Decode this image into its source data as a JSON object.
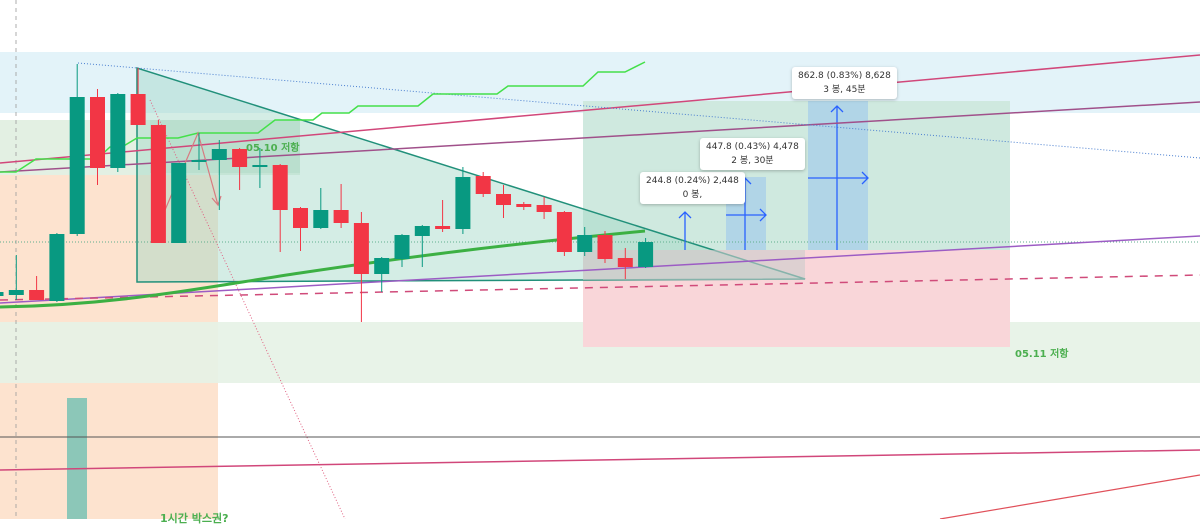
{
  "chart_data": {
    "type": "candlestick",
    "title": "",
    "xlabel": "",
    "ylabel": "",
    "grid": false,
    "colors": {
      "up": "#089981",
      "down": "#f23645"
    },
    "candles": [
      {
        "o": 223,
        "h": 228,
        "l": 222,
        "c": 227
      },
      {
        "o": 224,
        "h": 264,
        "l": 219,
        "c": 229
      },
      {
        "o": 229,
        "h": 243,
        "l": 219,
        "c": 219
      },
      {
        "o": 218,
        "h": 286,
        "l": 217,
        "c": 285
      },
      {
        "o": 285,
        "h": 455,
        "l": 283,
        "c": 422
      },
      {
        "o": 422,
        "h": 430,
        "l": 334,
        "c": 351
      },
      {
        "o": 351,
        "h": 426,
        "l": 347,
        "c": 425
      },
      {
        "o": 425,
        "h": 451,
        "l": 394,
        "c": 394
      },
      {
        "o": 394,
        "h": 399,
        "l": 276,
        "c": 276
      },
      {
        "o": 276,
        "h": 356,
        "l": 276,
        "c": 356
      },
      {
        "o": 357,
        "h": 386,
        "l": 349,
        "c": 359
      },
      {
        "o": 359,
        "h": 379,
        "l": 309,
        "c": 370
      },
      {
        "o": 370,
        "h": 371,
        "l": 329,
        "c": 352
      },
      {
        "o": 352,
        "h": 371,
        "l": 331,
        "c": 354
      },
      {
        "o": 354,
        "h": 355,
        "l": 267,
        "c": 309
      },
      {
        "o": 311,
        "h": 312,
        "l": 268,
        "c": 291
      },
      {
        "o": 291,
        "h": 331,
        "l": 290,
        "c": 309
      },
      {
        "o": 309,
        "h": 335,
        "l": 291,
        "c": 296
      },
      {
        "o": 296,
        "h": 307,
        "l": 197,
        "c": 245
      },
      {
        "o": 245,
        "h": 262,
        "l": 227,
        "c": 261
      },
      {
        "o": 260,
        "h": 285,
        "l": 252,
        "c": 284
      },
      {
        "o": 283,
        "h": 294,
        "l": 252,
        "c": 293
      },
      {
        "o": 293,
        "h": 319,
        "l": 287,
        "c": 290
      },
      {
        "o": 290,
        "h": 352,
        "l": 285,
        "c": 342
      },
      {
        "o": 343,
        "h": 347,
        "l": 322,
        "c": 325
      },
      {
        "o": 325,
        "h": 334,
        "l": 301,
        "c": 314
      },
      {
        "o": 315,
        "h": 317,
        "l": 309,
        "c": 312
      },
      {
        "o": 314,
        "h": 322,
        "l": 300,
        "c": 307
      },
      {
        "o": 307,
        "h": 308,
        "l": 263,
        "c": 267
      },
      {
        "o": 267,
        "h": 292,
        "l": 263,
        "c": 284
      },
      {
        "o": 284,
        "h": 288,
        "l": 256,
        "c": 260
      },
      {
        "o": 261,
        "h": 271,
        "l": 240,
        "c": 252
      },
      {
        "o": 252,
        "h": 281,
        "l": 251,
        "c": 277
      }
    ]
  },
  "annotations": {
    "zone_0510": "05.10 저항",
    "zone_0511": "05.11 저항",
    "box_label": "1시간 박스권?",
    "measure_1": {
      "line1": "244.8 (0.24%) 2,448",
      "line2": "0 봉,"
    },
    "measure_2": {
      "line1": "447.8 (0.43%) 4,478",
      "line2": "2 봉, 30분"
    },
    "measure_3": {
      "line1": "862.8 (0.83%) 8,628",
      "line2": "3 봉, 45분"
    }
  }
}
